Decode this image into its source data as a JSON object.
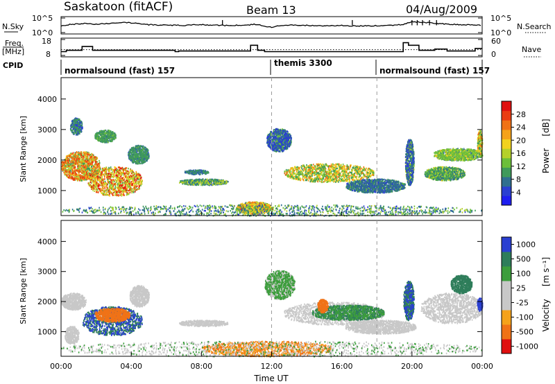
{
  "header": {
    "site": "Saskatoon (fitACF)",
    "beam": "Beam 13",
    "date": "04/Aug/2009"
  },
  "labels": {
    "nsky": "N.Sky",
    "freq": "Freq.",
    "freq_unit": "[MHz]",
    "cpid": "CPID",
    "nsearch": "N.Search",
    "nave": "Nave",
    "nsky_tick_hi": "10^5",
    "nsky_tick_lo": "10^0",
    "freq_tick_hi": "18",
    "freq_tick_lo": "8",
    "nave_tick_hi": "60",
    "nave_tick_lo": "0"
  },
  "cpid_segments": [
    {
      "label": "normalsound (fast) 157",
      "start": 0,
      "end": 12
    },
    {
      "label": "themis 3300",
      "start": 12,
      "end": 18
    },
    {
      "label": "normalsound (fast) 157",
      "start": 18,
      "end": 24
    }
  ],
  "colors": {
    "power": [
      "#1e1ef0",
      "#2a3fd1",
      "#2f6f8f",
      "#3f9a5a",
      "#6cbf3a",
      "#b5d02a",
      "#f2d21e",
      "#f5a21a",
      "#f07216",
      "#ea3c12",
      "#e01010"
    ],
    "velocity": [
      "#e01010",
      "#f07216",
      "#f5a21a",
      "#c8c8c8",
      "#c8c8c8",
      "#3c9d3c",
      "#2e7d5a",
      "#2a3fd1"
    ],
    "ground": "#bdbdbd"
  },
  "chart_data": [
    {
      "type": "line",
      "id": "nsky",
      "x": [
        0,
        0.5,
        1,
        1.5,
        2,
        2.5,
        3,
        3.5,
        4,
        4.5,
        5,
        5.5,
        6,
        6.5,
        7,
        7.5,
        8,
        8.5,
        9,
        9.5,
        10,
        10.5,
        11,
        11.5,
        12,
        12.5,
        13,
        13.5,
        14,
        14.5,
        15,
        15.5,
        16,
        16.5,
        17,
        17.5,
        18,
        18.5,
        19,
        19.5,
        20,
        20.5,
        21,
        21.5,
        22,
        22.5,
        23,
        23.5,
        24
      ],
      "y_log10": [
        2.2,
        2.8,
        3.0,
        3.1,
        2.9,
        3.0,
        3.2,
        3.6,
        3.3,
        3.0,
        2.7,
        2.6,
        2.6,
        2.5,
        2.5,
        2.6,
        2.7,
        2.6,
        2.5,
        2.4,
        2.5,
        2.6,
        2.8,
        2.4,
        1.8,
        2.4,
        2.6,
        2.5,
        2.5,
        2.4,
        2.3,
        2.4,
        2.4,
        2.3,
        2.3,
        2.4,
        2.3,
        2.5,
        2.6,
        2.7,
        3.8,
        3.5,
        3.4,
        3.1,
        2.9,
        2.8,
        2.7,
        2.6,
        2.5
      ],
      "yrange_log10": [
        0,
        5
      ]
    },
    {
      "type": "line",
      "id": "frequency",
      "x": [
        0,
        0.3,
        0.3,
        1.2,
        1.2,
        1.8,
        1.8,
        6.5,
        6.5,
        6.7,
        6.7,
        10.8,
        10.8,
        11.2,
        11.2,
        11.6,
        11.6,
        19.5,
        19.5,
        19.8,
        19.8,
        20.4,
        20.4,
        21.3,
        21.3,
        22.0,
        22.0,
        23.6,
        23.6,
        24
      ],
      "y": [
        10.4,
        10.4,
        11.2,
        11.2,
        13.6,
        13.6,
        11.2,
        11.2,
        10.4,
        10.4,
        10.8,
        10.8,
        14.4,
        14.4,
        11.2,
        11.2,
        10.4,
        10.4,
        16.0,
        16.0,
        14.4,
        14.4,
        11.2,
        11.2,
        12.0,
        12.0,
        10.8,
        10.8,
        12.4,
        12.4
      ],
      "yrange": [
        8,
        18
      ],
      "ylabel": "Freq. [MHz]"
    },
    {
      "type": "line",
      "id": "nave",
      "x": [
        0,
        24
      ],
      "y": [
        22,
        22
      ],
      "yrange": [
        0,
        60
      ]
    },
    {
      "type": "heatmap",
      "id": "power",
      "quantity": "Power",
      "unit": "[dB]",
      "xlabel": "",
      "ylabel": "Slant Range [km]",
      "xlim": [
        0,
        24
      ],
      "ylim": [
        180,
        4700
      ],
      "yticks": [
        1000,
        2000,
        3000,
        4000
      ],
      "cbar_ticks": [
        "4",
        "8",
        "12",
        "16",
        "20",
        "24",
        "28"
      ],
      "cbar_range": [
        0,
        32
      ],
      "grid": false,
      "regions": [
        {
          "t0": 0,
          "t1": 2.2,
          "r0": 1350,
          "r1": 2300,
          "vmin": 8,
          "vmax": 28
        },
        {
          "t0": 1.5,
          "t1": 4.6,
          "r0": 850,
          "r1": 1800,
          "vmin": 10,
          "vmax": 30
        },
        {
          "t0": 1.9,
          "t1": 3.1,
          "r0": 2600,
          "r1": 3000,
          "vmin": 6,
          "vmax": 14
        },
        {
          "t0": 0.5,
          "t1": 1.2,
          "r0": 2850,
          "r1": 3400,
          "vmin": 4,
          "vmax": 10
        },
        {
          "t0": 3.8,
          "t1": 5.0,
          "r0": 1900,
          "r1": 2500,
          "vmin": 4,
          "vmax": 12
        },
        {
          "t0": 6.7,
          "t1": 9.5,
          "r0": 1200,
          "r1": 1400,
          "vmin": 4,
          "vmax": 16
        },
        {
          "t0": 7.0,
          "t1": 8.4,
          "r0": 1550,
          "r1": 1700,
          "vmin": 4,
          "vmax": 10
        },
        {
          "t0": 11.7,
          "t1": 13.1,
          "r0": 2300,
          "r1": 3050,
          "vmin": 4,
          "vmax": 14
        },
        {
          "t0": 12.7,
          "t1": 17.8,
          "r0": 1300,
          "r1": 1900,
          "vmin": 10,
          "vmax": 24
        },
        {
          "t0": 16.2,
          "t1": 19.6,
          "r0": 950,
          "r1": 1400,
          "vmin": 4,
          "vmax": 14
        },
        {
          "t0": 19.6,
          "t1": 20.1,
          "r0": 1200,
          "r1": 2700,
          "vmin": 4,
          "vmax": 18
        },
        {
          "t0": 20.7,
          "t1": 23.0,
          "r0": 1350,
          "r1": 1800,
          "vmin": 8,
          "vmax": 20
        },
        {
          "t0": 21.2,
          "t1": 24,
          "r0": 2000,
          "r1": 2400,
          "vmin": 6,
          "vmax": 18
        },
        {
          "t0": 10.0,
          "t1": 12.0,
          "r0": 250,
          "r1": 650,
          "vmin": 8,
          "vmax": 30
        },
        {
          "t0": 0,
          "t1": 24,
          "r0": 190,
          "r1": 550,
          "vmin": 4,
          "vmax": 16
        },
        {
          "t0": 23.7,
          "t1": 24,
          "r0": 2200,
          "r1": 3000,
          "vmin": 10,
          "vmax": 24
        }
      ]
    },
    {
      "type": "heatmap",
      "id": "velocity",
      "quantity": "Velocity",
      "unit": "[m s⁻¹]",
      "xlabel": "Time UT",
      "ylabel": "Slant Range [km]",
      "xlim": [
        0,
        24
      ],
      "ylim": [
        180,
        4700
      ],
      "yticks": [
        1000,
        2000,
        3000,
        4000
      ],
      "xticks": [
        "00:00",
        "04:00",
        "08:00",
        "12:00",
        "16:00",
        "20:00",
        "00:00"
      ],
      "cbar_ticks": [
        "-1000",
        "-500",
        "-100",
        "-25",
        "25",
        "100",
        "500",
        "1000"
      ],
      "grid": false,
      "regions": [
        {
          "t0": 0,
          "t1": 1.4,
          "r0": 1750,
          "r1": 2300,
          "vmin": -20,
          "vmax": 20
        },
        {
          "t0": 1.2,
          "t1": 4.6,
          "r0": 900,
          "r1": 1850,
          "vmin": 100,
          "vmax": 700
        },
        {
          "t0": 1.9,
          "t1": 3.9,
          "r0": 1350,
          "r1": 1800,
          "vmin": -400,
          "vmax": -100
        },
        {
          "t0": 0.2,
          "t1": 1.0,
          "r0": 600,
          "r1": 1200,
          "vmin": -20,
          "vmax": 20
        },
        {
          "t0": 3.9,
          "t1": 5.0,
          "r0": 1850,
          "r1": 2550,
          "vmin": -20,
          "vmax": 20
        },
        {
          "t0": 6.7,
          "t1": 9.5,
          "r0": 1200,
          "r1": 1400,
          "vmin": -20,
          "vmax": 20
        },
        {
          "t0": 11.6,
          "t1": 13.3,
          "r0": 2100,
          "r1": 3050,
          "vmin": -20,
          "vmax": 60
        },
        {
          "t0": 12.7,
          "t1": 18.4,
          "r0": 1250,
          "r1": 2000,
          "vmin": -20,
          "vmax": 20
        },
        {
          "t0": 14.3,
          "t1": 18.4,
          "r0": 1400,
          "r1": 1900,
          "vmin": 60,
          "vmax": 200
        },
        {
          "t0": 16.2,
          "t1": 20.2,
          "r0": 950,
          "r1": 1400,
          "vmin": -20,
          "vmax": 20
        },
        {
          "t0": 19.5,
          "t1": 20.1,
          "r0": 1400,
          "r1": 2700,
          "vmin": 100,
          "vmax": 600
        },
        {
          "t0": 20.5,
          "t1": 24,
          "r0": 1300,
          "r1": 2300,
          "vmin": -20,
          "vmax": 20
        },
        {
          "t0": 22.2,
          "t1": 23.4,
          "r0": 2300,
          "r1": 2900,
          "vmin": 100,
          "vmax": 300
        },
        {
          "t0": 23.7,
          "t1": 24,
          "r0": 1700,
          "r1": 2150,
          "vmin": 500,
          "vmax": 1000
        },
        {
          "t0": 8.0,
          "t1": 15.5,
          "r0": 200,
          "r1": 700,
          "vmin": -200,
          "vmax": -60
        },
        {
          "t0": 0,
          "t1": 24,
          "r0": 190,
          "r1": 700,
          "vmin": -20,
          "vmax": 40
        },
        {
          "t0": 14.6,
          "t1": 15.2,
          "r0": 1650,
          "r1": 2100,
          "vmin": -400,
          "vmax": -200
        }
      ]
    }
  ]
}
